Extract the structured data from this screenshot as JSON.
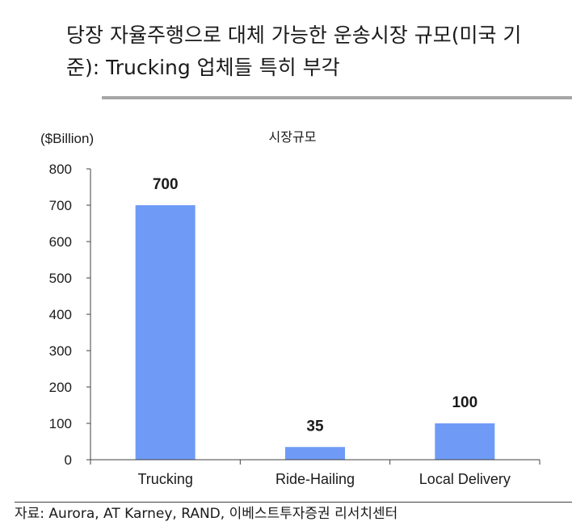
{
  "header": {
    "title": "당장 자율주행으로 대체 가능한 운송시장 규모(미국 기준): Trucking 업체들 특히 부각"
  },
  "chart_data": {
    "type": "bar",
    "title": "시장규모",
    "unit_label": "($Billion)",
    "xlabel": "",
    "ylabel": "",
    "categories": [
      "Trucking",
      "Ride-Hailing",
      "Local Delivery"
    ],
    "values": [
      700,
      35,
      100
    ],
    "ylim": [
      0,
      800
    ],
    "yticks": [
      0,
      100,
      200,
      300,
      400,
      500,
      600,
      700,
      800
    ],
    "bar_color": "#6f9bf7",
    "grid": false,
    "legend": "none"
  },
  "footer": {
    "source": "자료: Aurora, AT Karney, RAND, 이베스트투자증권 리서치센터"
  }
}
